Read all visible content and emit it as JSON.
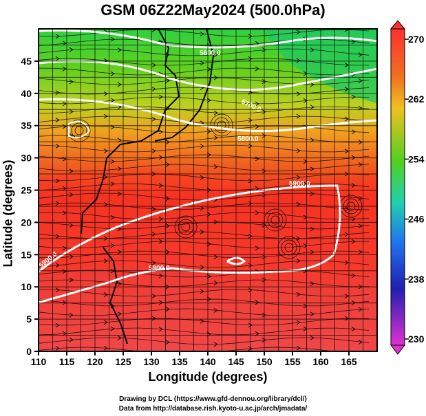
{
  "title": "GSM 06Z22May2024 (500.0hPa)",
  "map": {
    "xlabel": "Longitude (degrees)",
    "ylabel": "Latitude  (degrees)",
    "x_range": [
      110,
      170
    ],
    "y_range": [
      0,
      50
    ],
    "x_ticks": [
      "110",
      "115",
      "120",
      "125",
      "130",
      "135",
      "140",
      "145",
      "150",
      "155",
      "160",
      "165"
    ],
    "y_ticks": [
      "0",
      "5",
      "10",
      "15",
      "20",
      "25",
      "30",
      "35",
      "40",
      "45"
    ],
    "grid": true,
    "fields": [
      "temperature (shaded)",
      "geopotential height (white contours)",
      "wind streamlines"
    ],
    "contours": [
      {
        "label": "5600.0"
      },
      {
        "label": "5700.0"
      },
      {
        "label": "5800.0"
      },
      {
        "label": "5900.0"
      },
      {
        "label": "5900.0"
      },
      {
        "label": "5900.0"
      }
    ]
  },
  "colorbar": {
    "ticks": [
      "270",
      "262",
      "254",
      "246",
      "238",
      "230"
    ],
    "colors": [
      "#ff3030",
      "#f07020",
      "#f0c020",
      "#60d020",
      "#20d0a0",
      "#2060f0",
      "#2020c0",
      "#e030d0"
    ]
  },
  "credits": {
    "line1": "Drawing by DCL (https://www.gfd-dennou.org/library/dcl/)",
    "line2": "Data from http://database.rish.kyoto-u.ac.jp/arch/jmadata/"
  }
}
